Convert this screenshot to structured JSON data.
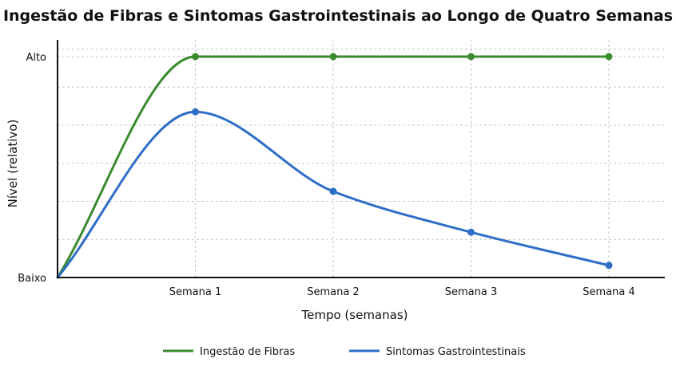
{
  "chart_data": {
    "type": "line",
    "title": "Ingestão de Fibras e Sintomas Gastrointestinais ao Longo de Quatro Semanas",
    "xlabel": "Tempo (semanas)",
    "ylabel": "Nível (relativo)",
    "x_ticks": [
      "Semana 1",
      "Semana 2",
      "Semana 3",
      "Semana 4"
    ],
    "y_ticks": [
      "Baixo",
      "Alto"
    ],
    "x": [
      0,
      1,
      2,
      3,
      4
    ],
    "xlim": [
      0,
      4.2
    ],
    "ylim": [
      0,
      1
    ],
    "grid": true,
    "legend_position": "bottom",
    "series": [
      {
        "name": "Ingestão de Fibras",
        "color": "#3a8a2e",
        "values": [
          0,
          1,
          1,
          1,
          1
        ]
      },
      {
        "name": "Sintomas Gastrointestinais",
        "color": "#2f6ec7",
        "values": [
          0,
          0.75,
          0.39,
          0.205,
          0.055
        ]
      }
    ]
  }
}
